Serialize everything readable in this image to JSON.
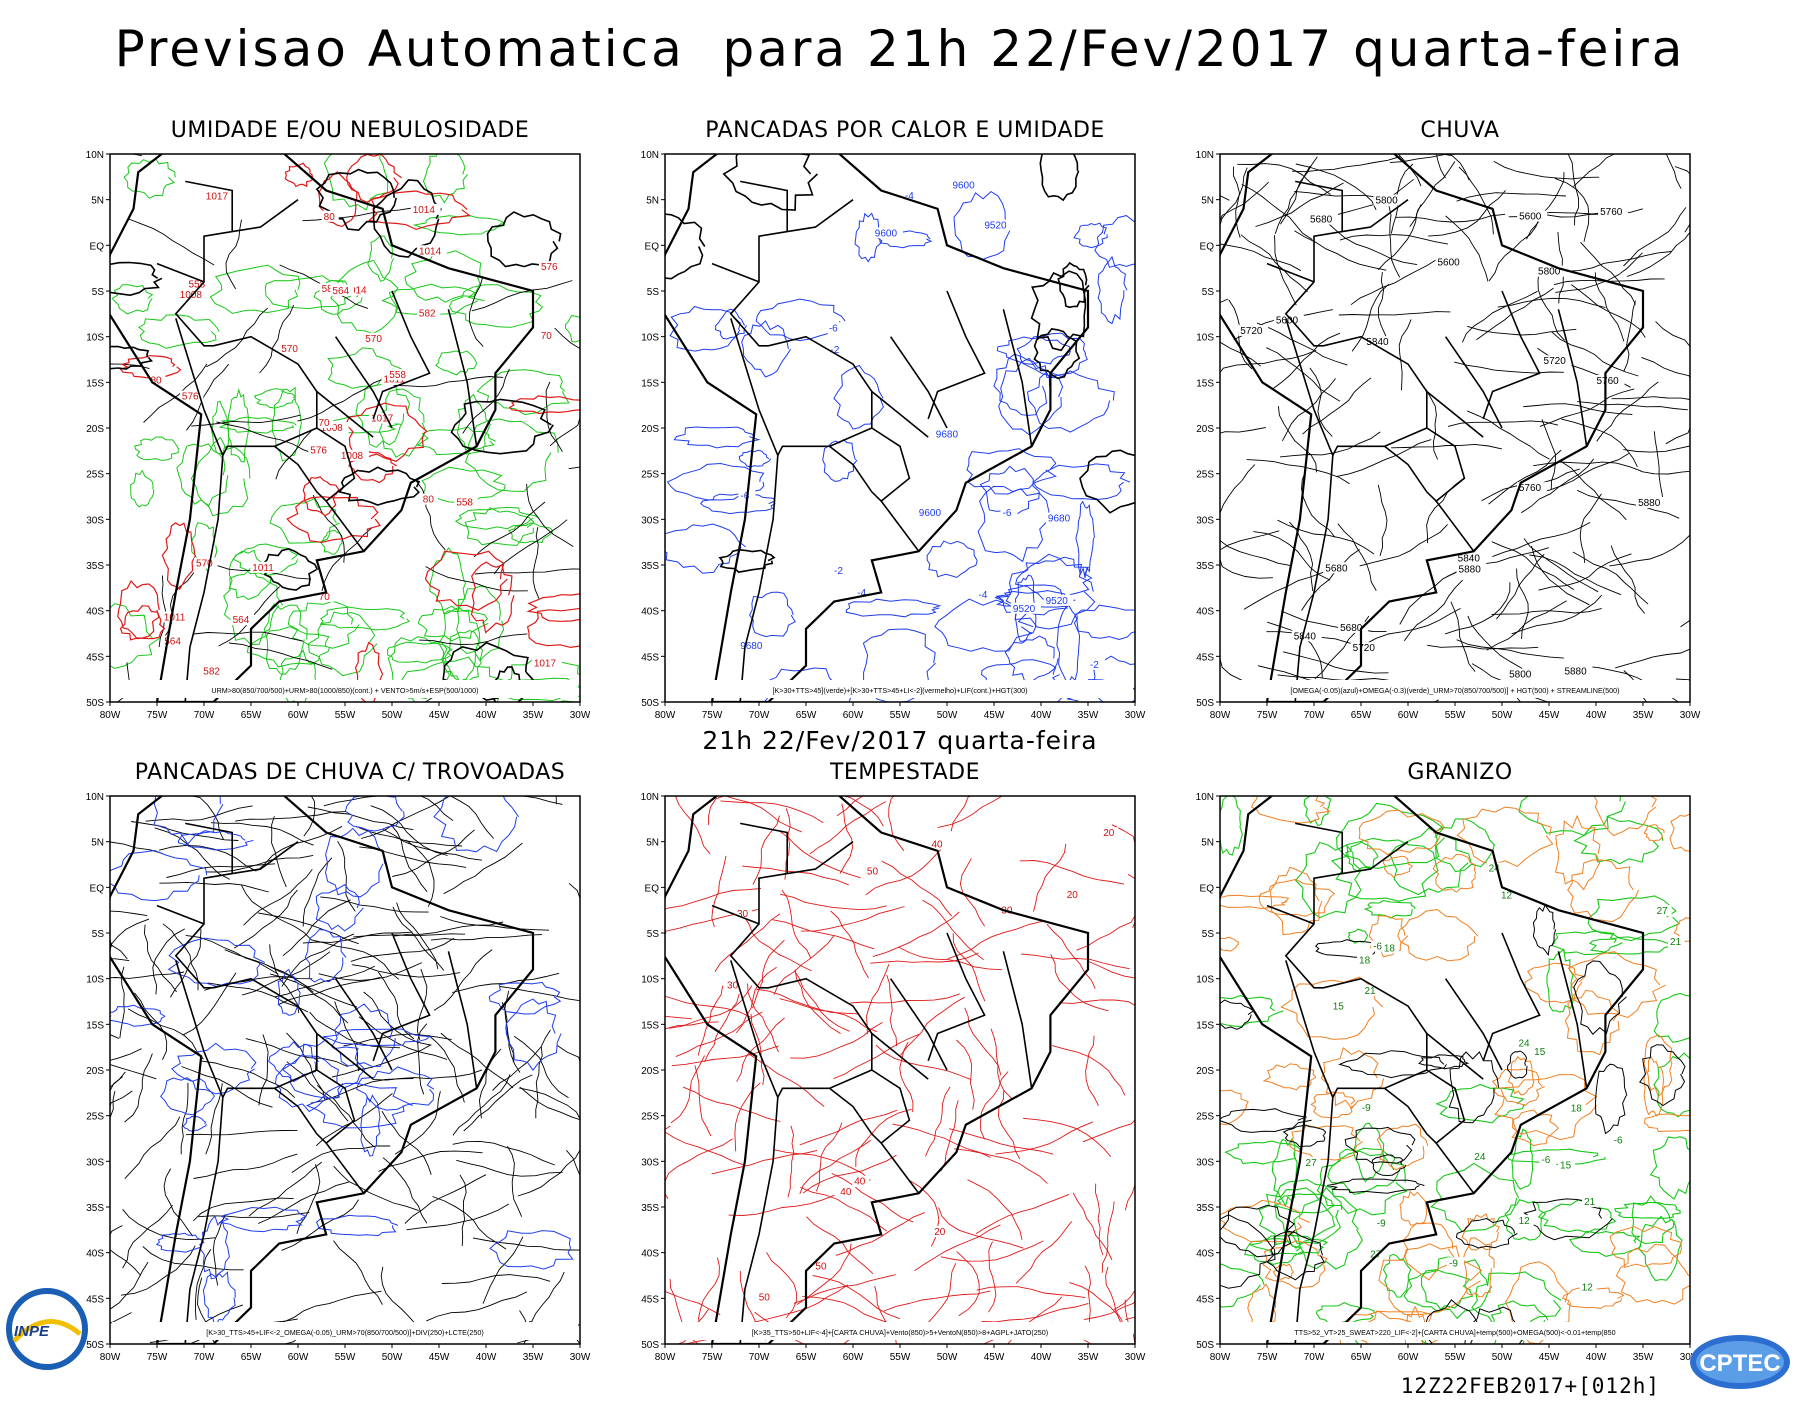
{
  "header": {
    "title": "Previsao Automatica  para 21h 22/Fev/2017 quarta-feira"
  },
  "subheader": {
    "title": "21h 22/Fev/2017 quarta-feira"
  },
  "axes": {
    "lat_labels": [
      "10N",
      "5N",
      "EQ",
      "5S",
      "10S",
      "15S",
      "20S",
      "25S",
      "30S",
      "35S",
      "40S",
      "45S",
      "50S"
    ],
    "lon_labels": [
      "80W",
      "75W",
      "70W",
      "65W",
      "60W",
      "55W",
      "50W",
      "45W",
      "40W",
      "35W",
      "30W"
    ]
  },
  "colors": {
    "blue_fill": "#8f91e8",
    "green_contour": "#18c818",
    "red_contour": "#e01818",
    "red_fill": "#f0403c",
    "teal_fill": "#1c5c5c",
    "blue_fill_dark": "#2040f0",
    "green_fill": "#30d030",
    "purple_fill": "#a020c0",
    "orange_contour": "#f08020",
    "yellow_fill": "#e8d020"
  },
  "panels": [
    {
      "title": "UMIDADE E/OU NEBULOSIDADE",
      "legend": "URM>80(850/700/500)+URM>80(1000/850)(cont.) + VENTO>5m/s+ESP(500/1000)",
      "labels": [
        "1008",
        "1011",
        "1014",
        "1017",
        "576",
        "582",
        "570",
        "564",
        "558",
        "80",
        "70"
      ]
    },
    {
      "title": "PANCADAS POR CALOR E UMIDADE",
      "legend": "[K>30+TTS>45](verde)+[K>30+TTS>45+LI<-2](vermelho)+LIF(cont.)+HGT(300)",
      "labels": [
        "9680",
        "9600",
        "9520",
        "-2",
        "-4",
        "-6"
      ]
    },
    {
      "title": "CHUVA",
      "legend": "[OMEGA(-0.05)(azul)+OMEGA(-0.3)(verde)_URM>70(850/700/500)] + HGT(500) + STREAMLINE(500)",
      "labels": [
        "5880",
        "5840",
        "5800",
        "5760",
        "5720",
        "5680",
        "5600"
      ]
    },
    {
      "title": "PANCADAS DE CHUVA C/ TROVOADAS",
      "legend": "[K>30_TTS>45+LIF<-2_OMEGA(-0.05)_URM>70(850/700/500)]+DIV(250)+LCTE(250)",
      "labels": []
    },
    {
      "title": "TEMPESTADE",
      "legend": "[K>35_TTS>50+LIF<-4]+[CARTA CHUVA]+Vento(850)>5+VentoN(850)>8+AGPL+JATO(250)",
      "labels": [
        "40",
        "50",
        "20",
        "30"
      ]
    },
    {
      "title": "GRANIZO",
      "legend": "TTS>52_VT>25_SWEAT>220_LIF<-2]+[CARTA CHUVA]+temp(500)+OMEGA(500)<-0.01+temp(850",
      "labels": [
        "-9",
        "-6",
        "15",
        "18",
        "21",
        "24",
        "27",
        "12"
      ]
    }
  ],
  "footer": {
    "run_code": "12Z22FEB2017+[012h]",
    "logo_left": "INPE",
    "logo_right": "CPTEC"
  }
}
